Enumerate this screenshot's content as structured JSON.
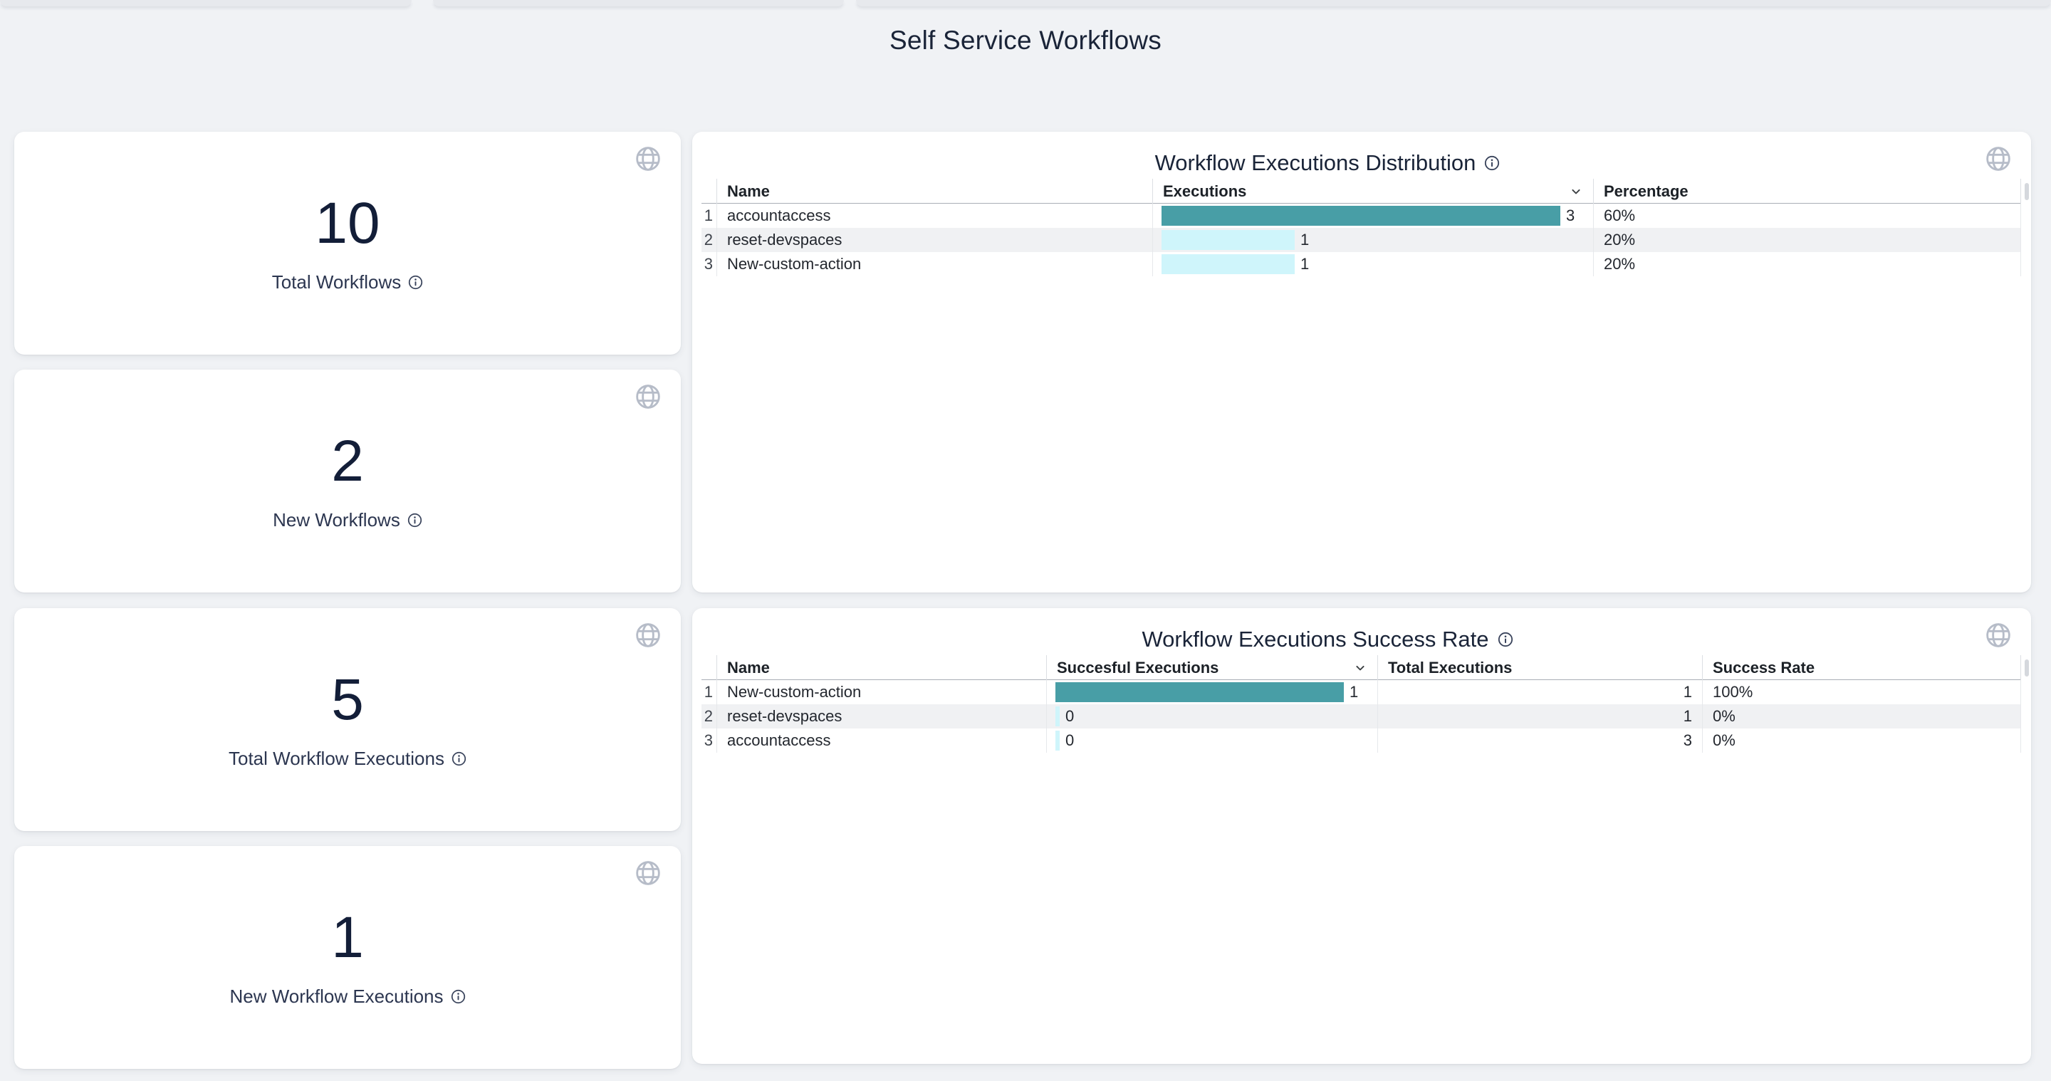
{
  "page": {
    "title": "Self Service Workflows"
  },
  "stat_cards": [
    {
      "value": "10",
      "label": "Total Workflows"
    },
    {
      "value": "2",
      "label": "New Workflows"
    },
    {
      "value": "5",
      "label": "Total Workflow Executions"
    },
    {
      "value": "1",
      "label": "New Workflow Executions"
    }
  ],
  "tables": [
    {
      "title": "Workflow Executions Distribution",
      "columns": [
        {
          "label": "",
          "kind": "index"
        },
        {
          "label": "Name",
          "kind": "name"
        },
        {
          "label": "Executions",
          "kind": "bar",
          "sorted": true
        },
        {
          "label": "Percentage",
          "kind": "plain"
        }
      ],
      "bar_max": 3,
      "rows": [
        {
          "num": "1",
          "name": "accountaccess",
          "value": 3,
          "value_label": "3",
          "cells": [
            "60%"
          ]
        },
        {
          "num": "2",
          "name": "reset-devspaces",
          "value": 1,
          "value_label": "1",
          "cells": [
            "20%"
          ]
        },
        {
          "num": "3",
          "name": "New-custom-action",
          "value": 1,
          "value_label": "1",
          "cells": [
            "20%"
          ]
        }
      ]
    },
    {
      "title": "Workflow Executions Success Rate",
      "columns": [
        {
          "label": "",
          "kind": "index"
        },
        {
          "label": "Name",
          "kind": "name"
        },
        {
          "label": "Succesful Executions",
          "kind": "bar",
          "sorted": true
        },
        {
          "label": "Total Executions",
          "kind": "right"
        },
        {
          "label": "Success Rate",
          "kind": "plain"
        }
      ],
      "bar_max": 1,
      "rows": [
        {
          "num": "1",
          "name": "New-custom-action",
          "value": 1,
          "value_label": "1",
          "cells": [
            "1",
            "100%"
          ]
        },
        {
          "num": "2",
          "name": "reset-devspaces",
          "value": 0,
          "value_label": "0",
          "cells": [
            "1",
            "0%"
          ]
        },
        {
          "num": "3",
          "name": "accountaccess",
          "value": 0,
          "value_label": "0",
          "cells": [
            "3",
            "0%"
          ]
        }
      ]
    }
  ],
  "colors": {
    "bar_primary_teal": "#489EA6",
    "bar_secondary_cyan": "#CFF5FB",
    "title_navy": "#1A2438",
    "page_background": "#F0F2F5",
    "zebra_row": "#F0F1F3"
  },
  "icons": [
    "globe-icon",
    "info-icon",
    "chevron-down-icon"
  ]
}
